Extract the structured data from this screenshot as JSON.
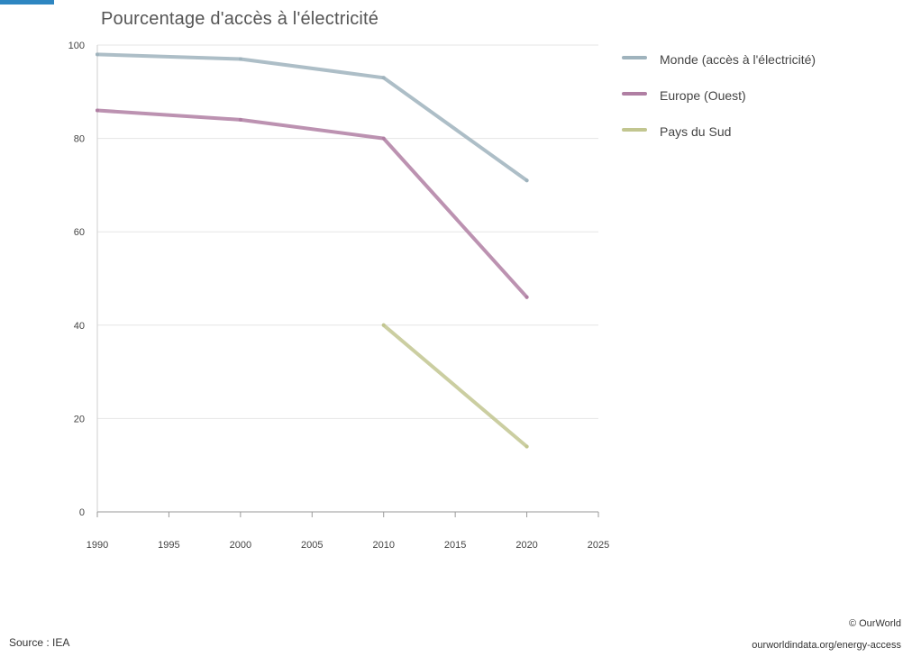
{
  "chart_data": {
    "type": "line",
    "title": "Pourcentage d'accès à l'électricité",
    "xlabel": "",
    "ylabel": "",
    "x": [
      1990,
      1995,
      2000,
      2005,
      2010,
      2015,
      2020,
      2025
    ],
    "xlim": [
      1990,
      2025
    ],
    "ylim": [
      0,
      100
    ],
    "yticks": [
      0,
      20,
      40,
      60,
      80,
      100
    ],
    "grid": true,
    "legend": "top-right",
    "series": [
      {
        "name": "Monde (accès à l'électricité)",
        "color": "#9fb3bd",
        "points": [
          [
            1990,
            98
          ],
          [
            2000,
            97
          ],
          [
            2010,
            93
          ],
          [
            2020,
            71
          ]
        ]
      },
      {
        "name": "Europe (Ouest)",
        "color": "#b07fa3",
        "points": [
          [
            1990,
            86
          ],
          [
            2000,
            84
          ],
          [
            2010,
            80
          ],
          [
            2020,
            46
          ]
        ]
      },
      {
        "name": "Pays du Sud",
        "color": "#c2c690",
        "points": [
          [
            2010,
            40
          ],
          [
            2020,
            14
          ]
        ]
      }
    ]
  },
  "source_text": "Source : IEA",
  "footnote": {
    "line1": "© OurWorld",
    "line2": "ourworldindata.org/energy-access"
  }
}
